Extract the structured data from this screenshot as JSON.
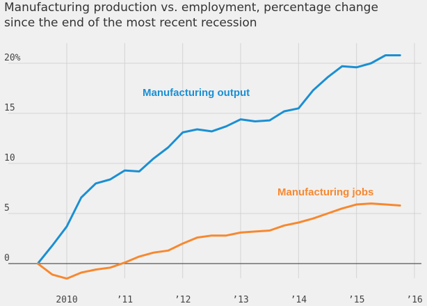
{
  "chart_data": {
    "type": "line",
    "title_line1": "Manufacturing production vs. employment, percentage change",
    "title_line2": "since the end of the most recent recession",
    "xlabel": "",
    "ylabel": "",
    "xlim": [
      2009.25,
      2016.5
    ],
    "ylim": [
      -2,
      22
    ],
    "grid": true,
    "x_ticks": [
      {
        "value": 2010,
        "label": "2010"
      },
      {
        "value": 2011,
        "label": "’11"
      },
      {
        "value": 2012,
        "label": "’12"
      },
      {
        "value": 2013,
        "label": "’13"
      },
      {
        "value": 2014,
        "label": "’14"
      },
      {
        "value": 2015,
        "label": "’15"
      },
      {
        "value": 2016,
        "label": "’16"
      }
    ],
    "y_ticks": [
      {
        "value": 0,
        "label": "0"
      },
      {
        "value": 5,
        "label": "5"
      },
      {
        "value": 10,
        "label": "10"
      },
      {
        "value": 15,
        "label": "15"
      },
      {
        "value": 20,
        "label": "20%"
      }
    ],
    "x": [
      2009.5,
      2009.75,
      2010.0,
      2010.25,
      2010.5,
      2010.75,
      2011.0,
      2011.25,
      2011.5,
      2011.75,
      2012.0,
      2012.25,
      2012.5,
      2012.75,
      2013.0,
      2013.25,
      2013.5,
      2013.75,
      2014.0,
      2014.25,
      2014.5,
      2014.75,
      2015.0,
      2015.25,
      2015.5,
      2015.75
    ],
    "series": [
      {
        "name": "Manufacturing output",
        "color": "#1a8fd3",
        "values": [
          0.0,
          1.8,
          3.7,
          6.6,
          8.0,
          8.4,
          9.3,
          9.2,
          10.5,
          11.6,
          13.1,
          13.4,
          13.2,
          13.7,
          14.4,
          14.2,
          14.3,
          15.2,
          15.5,
          17.3,
          18.6,
          19.7,
          19.6,
          20.0,
          20.8,
          20.8
        ]
      },
      {
        "name": "Manufacturing jobs",
        "color": "#f7882f",
        "values": [
          0.0,
          -1.1,
          -1.5,
          -0.9,
          -0.6,
          -0.4,
          0.1,
          0.7,
          1.1,
          1.3,
          2.0,
          2.6,
          2.8,
          2.8,
          3.1,
          3.2,
          3.3,
          3.8,
          4.1,
          4.5,
          5.0,
          5.5,
          5.9,
          6.0,
          5.9,
          5.8
        ]
      }
    ]
  }
}
